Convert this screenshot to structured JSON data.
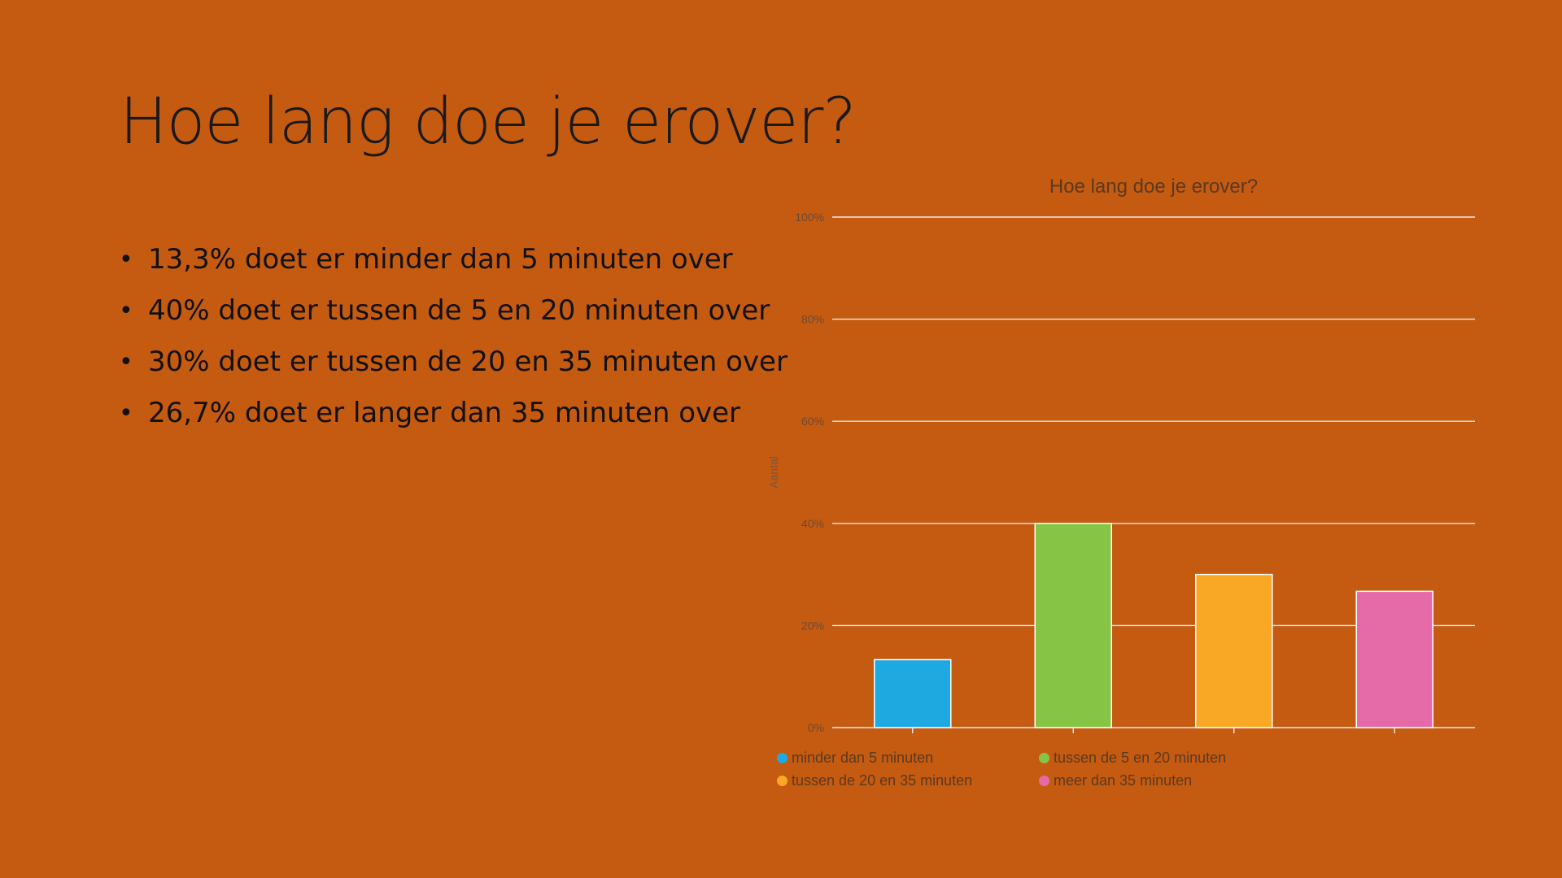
{
  "slide": {
    "title": "Hoe lang doe je erover?",
    "bullets": [
      "13,3% doet er minder dan 5 minuten over",
      "40% doet er tussen de 5 en 20 minuten over",
      "30% doet er tussen de 20 en 35 minuten over",
      "26,7% doet er langer dan 35 minuten over"
    ],
    "background_color": "#C55A11"
  },
  "chart_data": {
    "type": "bar",
    "title": "Hoe lang doe je erover?",
    "ylabel": "Aantal",
    "xlabel": "",
    "categories": [
      "minder dan 5 minuten",
      "tussen de 5 en 20 minuten",
      "tussen de 20 en 35 minuten",
      "meer dan 35 minuten"
    ],
    "values": [
      13.3,
      40,
      30,
      26.7
    ],
    "colors": [
      "#1EA9E1",
      "#86C446",
      "#F9A825",
      "#E56BA8"
    ],
    "y_ticks": [
      "0%",
      "20%",
      "40%",
      "60%",
      "80%",
      "100%"
    ],
    "ylim": [
      0,
      100
    ],
    "grid": true,
    "legend_position": "bottom"
  }
}
